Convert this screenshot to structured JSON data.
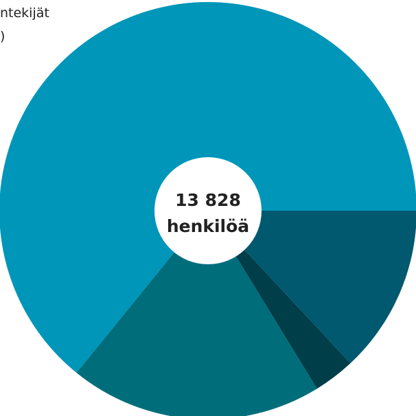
{
  "partial_label_lines": [
    "ntekijät",
    ")"
  ],
  "chart_data": {
    "type": "pie",
    "title": "",
    "center_label": {
      "value": "13 828",
      "unit": "henkilöä"
    },
    "slices": [
      {
        "value": 0.6415,
        "color": "#0096b9"
      },
      {
        "value": 0.196,
        "color": "#006d7b"
      },
      {
        "value": 0.0321,
        "color": "#003e4a"
      },
      {
        "value": 0.1304,
        "color": "#00596e"
      }
    ]
  }
}
